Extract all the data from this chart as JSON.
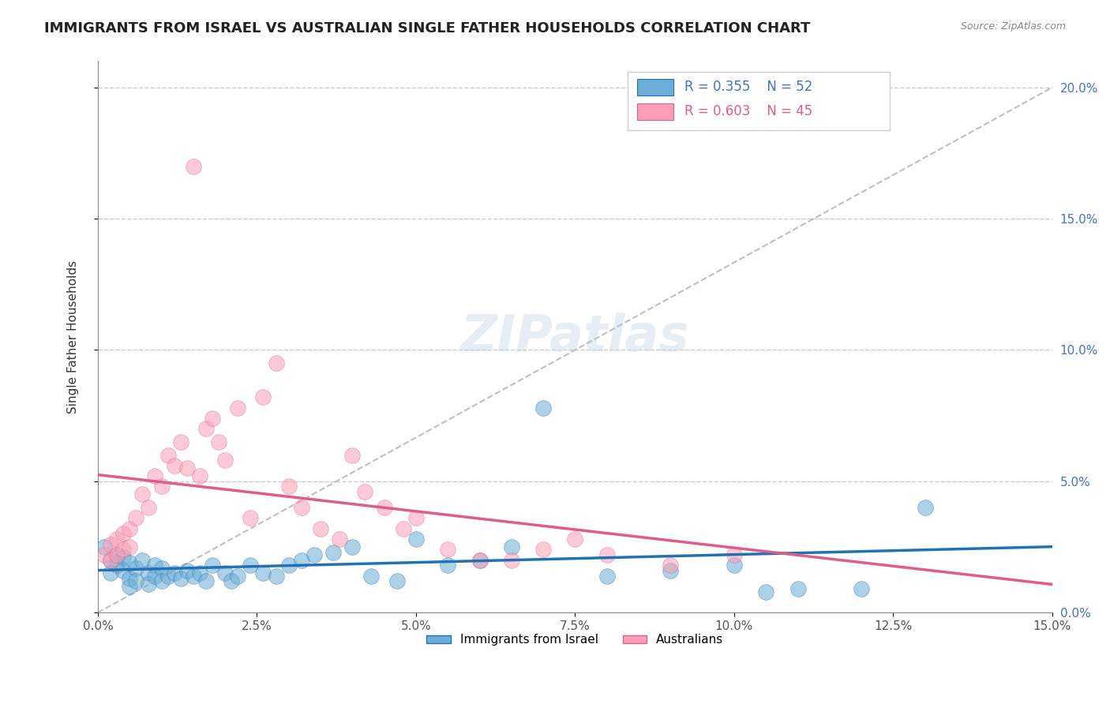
{
  "title": "IMMIGRANTS FROM ISRAEL VS AUSTRALIAN SINGLE FATHER HOUSEHOLDS CORRELATION CHART",
  "source": "Source: ZipAtlas.com",
  "ylabel": "Single Father Households",
  "xlim": [
    0.0,
    0.15
  ],
  "ylim": [
    0.0,
    0.21
  ],
  "legend_r1": "R = 0.355",
  "legend_n1": "N = 52",
  "legend_r2": "R = 0.603",
  "legend_n2": "N = 45",
  "color_blue": "#6baed6",
  "color_pink": "#fa9fb5",
  "color_blue_line": "#2171b5",
  "color_pink_line": "#e05c8a",
  "title_fontsize": 13,
  "blue_scatter_x": [
    0.001,
    0.002,
    0.002,
    0.003,
    0.003,
    0.004,
    0.004,
    0.005,
    0.005,
    0.005,
    0.006,
    0.006,
    0.007,
    0.008,
    0.008,
    0.009,
    0.009,
    0.01,
    0.01,
    0.011,
    0.012,
    0.013,
    0.014,
    0.015,
    0.016,
    0.017,
    0.018,
    0.02,
    0.021,
    0.022,
    0.024,
    0.026,
    0.028,
    0.03,
    0.032,
    0.034,
    0.037,
    0.04,
    0.043,
    0.047,
    0.05,
    0.055,
    0.06,
    0.065,
    0.07,
    0.08,
    0.09,
    0.1,
    0.105,
    0.11,
    0.12,
    0.13
  ],
  "blue_scatter_y": [
    0.025,
    0.02,
    0.015,
    0.022,
    0.018,
    0.021,
    0.016,
    0.019,
    0.013,
    0.01,
    0.017,
    0.012,
    0.02,
    0.015,
    0.011,
    0.018,
    0.014,
    0.017,
    0.012,
    0.014,
    0.015,
    0.013,
    0.016,
    0.014,
    0.015,
    0.012,
    0.018,
    0.015,
    0.012,
    0.014,
    0.018,
    0.015,
    0.014,
    0.018,
    0.02,
    0.022,
    0.023,
    0.025,
    0.014,
    0.012,
    0.028,
    0.018,
    0.02,
    0.025,
    0.078,
    0.014,
    0.016,
    0.018,
    0.008,
    0.009,
    0.009,
    0.04
  ],
  "pink_scatter_x": [
    0.001,
    0.002,
    0.002,
    0.003,
    0.003,
    0.004,
    0.004,
    0.005,
    0.005,
    0.006,
    0.007,
    0.008,
    0.009,
    0.01,
    0.011,
    0.012,
    0.013,
    0.014,
    0.015,
    0.016,
    0.017,
    0.018,
    0.019,
    0.02,
    0.022,
    0.024,
    0.026,
    0.028,
    0.03,
    0.032,
    0.035,
    0.038,
    0.04,
    0.042,
    0.045,
    0.048,
    0.05,
    0.055,
    0.06,
    0.065,
    0.07,
    0.075,
    0.08,
    0.09,
    0.1
  ],
  "pink_scatter_y": [
    0.022,
    0.026,
    0.02,
    0.028,
    0.022,
    0.03,
    0.024,
    0.032,
    0.025,
    0.036,
    0.045,
    0.04,
    0.052,
    0.048,
    0.06,
    0.056,
    0.065,
    0.055,
    0.17,
    0.052,
    0.07,
    0.074,
    0.065,
    0.058,
    0.078,
    0.036,
    0.082,
    0.095,
    0.048,
    0.04,
    0.032,
    0.028,
    0.06,
    0.046,
    0.04,
    0.032,
    0.036,
    0.024,
    0.02,
    0.02,
    0.024,
    0.028,
    0.022,
    0.018,
    0.022
  ]
}
